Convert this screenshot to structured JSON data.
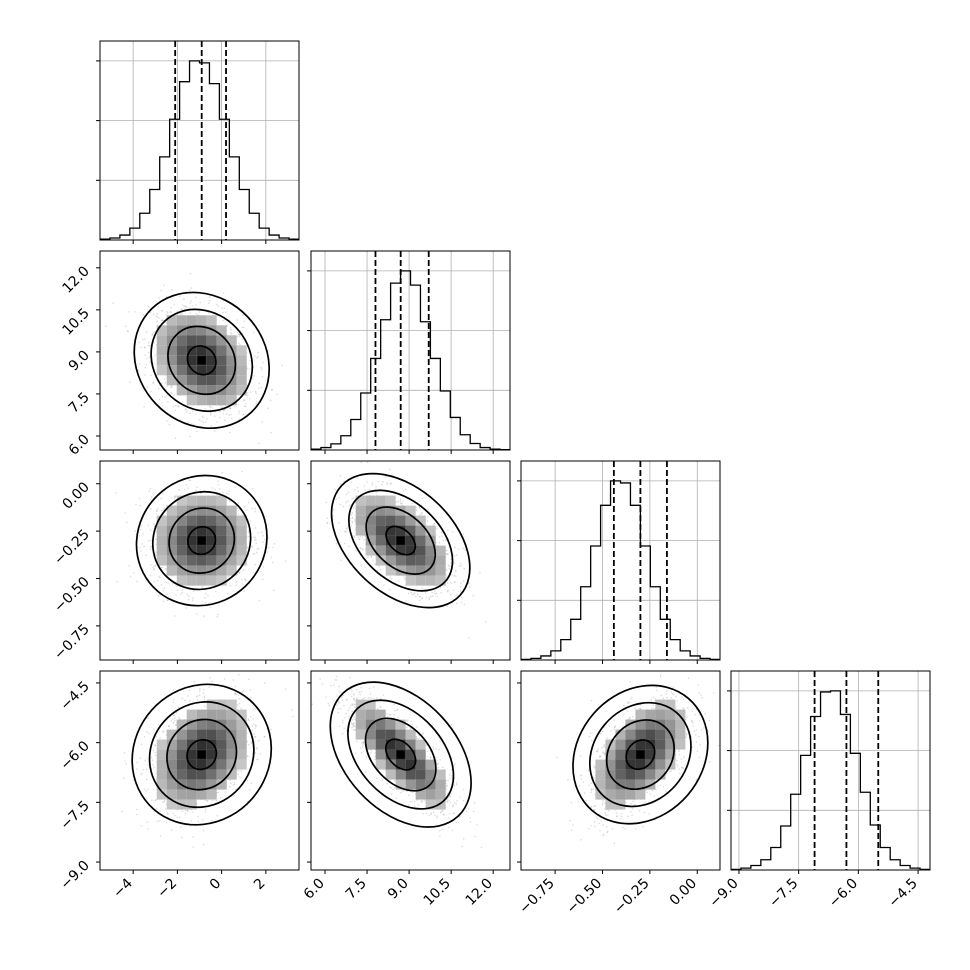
{
  "chart_data": {
    "type": "corner",
    "xlabel": "",
    "ylabel": "",
    "colors": {
      "ink": "#000000",
      "grid": "#b0b0b0",
      "points": "#9a9a9a"
    },
    "grid": true,
    "n_params": 4,
    "quantile_lines": "dashed",
    "params": [
      {
        "range": [
          -5.5,
          3.5
        ],
        "ticks": [
          "-4",
          "-2",
          "0",
          "2"
        ],
        "tick_values": [
          -4,
          -2,
          0,
          2
        ],
        "mean": -0.9,
        "std": 1.15,
        "quantiles": [
          -2.1,
          -0.9,
          0.2
        ],
        "hist": [
          4,
          10,
          25,
          60,
          135,
          255,
          420,
          610,
          800,
          905,
          895,
          790,
          610,
          420,
          255,
          135,
          60,
          25,
          10,
          4
        ]
      },
      {
        "range": [
          5.5,
          12.6
        ],
        "ticks": [
          "6.0",
          "7.5",
          "9.0",
          "10.5",
          "12.0"
        ],
        "tick_values": [
          6.0,
          7.5,
          9.0,
          10.5,
          12.0
        ],
        "mean": 8.7,
        "std": 0.95,
        "quantiles": [
          7.8,
          8.7,
          9.7
        ],
        "hist": [
          4,
          12,
          30,
          70,
          150,
          280,
          450,
          640,
          820,
          880,
          810,
          630,
          450,
          290,
          160,
          75,
          32,
          12,
          4,
          2
        ]
      },
      {
        "range": [
          -0.93,
          0.12
        ],
        "ticks": [
          "0.00",
          "-0.25",
          "-0.50",
          "-0.75"
        ],
        "tick_values": [
          0.0,
          -0.25,
          -0.5,
          -0.75
        ],
        "mean": -0.3,
        "std": 0.13,
        "quantiles": [
          -0.44,
          -0.3,
          -0.16
        ],
        "hist": [
          3,
          8,
          20,
          45,
          100,
          200,
          360,
          560,
          760,
          880,
          870,
          760,
          560,
          360,
          200,
          100,
          45,
          20,
          8,
          3
        ]
      },
      {
        "range": [
          -9.2,
          -4.2
        ],
        "ticks": [
          "-9.0",
          "-7.5",
          "-6.0",
          "-4.5"
        ],
        "tick_values": [
          -9.0,
          -7.5,
          -6.0,
          -4.5
        ],
        "mean": -6.3,
        "std": 0.72,
        "quantiles": [
          -7.1,
          -6.3,
          -5.5
        ],
        "hist": [
          3,
          9,
          22,
          50,
          110,
          215,
          370,
          560,
          750,
          870,
          875,
          760,
          570,
          380,
          220,
          110,
          50,
          22,
          9,
          3
        ]
      }
    ],
    "correlations": [
      {
        "i": 1,
        "j": 0,
        "r": -0.3
      },
      {
        "i": 2,
        "j": 0,
        "r": 0.05
      },
      {
        "i": 2,
        "j": 1,
        "r": -0.6
      },
      {
        "i": 3,
        "j": 0,
        "r": 0.35
      },
      {
        "i": 3,
        "j": 1,
        "r": -0.8
      },
      {
        "i": 3,
        "j": 2,
        "r": 0.55
      }
    ]
  }
}
